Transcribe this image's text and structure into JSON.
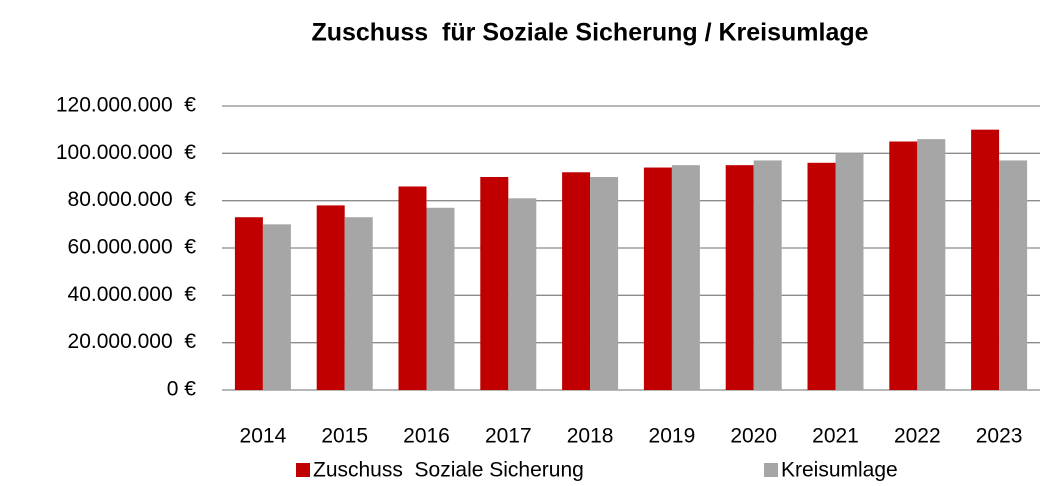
{
  "chart_data": {
    "type": "bar",
    "title": "Zuschuss  für Soziale Sicherung / Kreisumlage",
    "categories": [
      "2014",
      "2015",
      "2016",
      "2017",
      "2018",
      "2019",
      "2020",
      "2021",
      "2022",
      "2023"
    ],
    "series": [
      {
        "name": "Zuschuss  Soziale Sicherung",
        "color": "#c00000",
        "values": [
          73000000,
          78000000,
          86000000,
          90000000,
          92000000,
          94000000,
          95000000,
          96000000,
          105000000,
          110000000
        ]
      },
      {
        "name": "Kreisumlage",
        "color": "#a6a6a6",
        "values": [
          70000000,
          73000000,
          77000000,
          81000000,
          90000000,
          95000000,
          97000000,
          100000000,
          106000000,
          97000000
        ]
      }
    ],
    "ylim": [
      0,
      120000000
    ],
    "yticks": [
      {
        "value": 0,
        "label": "0 €"
      },
      {
        "value": 20000000,
        "label": "20.000.000  €"
      },
      {
        "value": 40000000,
        "label": "40.000.000  €"
      },
      {
        "value": 60000000,
        "label": "60.000.000  €"
      },
      {
        "value": 80000000,
        "label": "80.000.000  €"
      },
      {
        "value": 100000000,
        "label": "100.000.000  €"
      },
      {
        "value": 120000000,
        "label": "120.000.000  €"
      }
    ],
    "grid": true,
    "legend": "bottom"
  }
}
